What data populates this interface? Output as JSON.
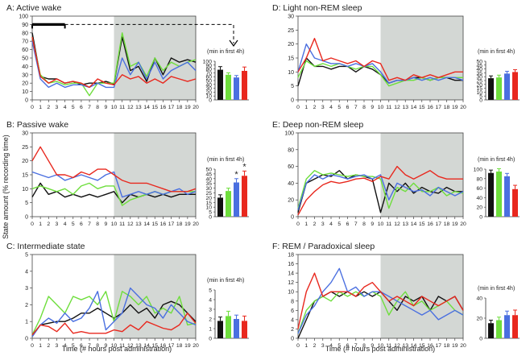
{
  "figure": {
    "ylabel": "State amount (% recording time)",
    "xlabel": "Time (# hours post administration)",
    "inset_label": "(min in first 4h)",
    "colors": {
      "black": "#111111",
      "green": "#6ede3c",
      "blue": "#4a6fe0",
      "red": "#e8281e",
      "shade": "#d3d7d4"
    }
  },
  "chart_data": [
    {
      "panel": "A",
      "title": "A: Active wake",
      "type": "line",
      "x": [
        0,
        1,
        2,
        3,
        4,
        5,
        6,
        7,
        8,
        9,
        10,
        11,
        12,
        13,
        14,
        15,
        16,
        17,
        18,
        19,
        20
      ],
      "ylim": [
        0,
        100
      ],
      "yticks": [
        0,
        10,
        20,
        30,
        40,
        50,
        60,
        70,
        80,
        90,
        100
      ],
      "xlim": [
        0,
        20
      ],
      "shaded_from": 10,
      "series": [
        {
          "color": "black",
          "values": [
            80,
            28,
            25,
            25,
            20,
            22,
            18,
            20,
            20,
            22,
            19,
            75,
            35,
            40,
            22,
            50,
            30,
            50,
            45,
            48,
            45
          ]
        },
        {
          "color": "green",
          "values": [
            75,
            30,
            20,
            22,
            18,
            20,
            20,
            5,
            20,
            20,
            20,
            80,
            40,
            45,
            28,
            50,
            35,
            45,
            40,
            45,
            48
          ]
        },
        {
          "color": "blue",
          "values": [
            70,
            25,
            15,
            20,
            15,
            18,
            18,
            15,
            20,
            15,
            15,
            50,
            30,
            45,
            25,
            45,
            25,
            35,
            40,
            45,
            35
          ]
        },
        {
          "color": "red",
          "values": [
            75,
            28,
            20,
            25,
            20,
            22,
            20,
            15,
            25,
            20,
            18,
            30,
            25,
            28,
            20,
            25,
            20,
            28,
            25,
            22,
            25
          ]
        }
      ],
      "inset": {
        "ylim": [
          0,
          100
        ],
        "yticks": [
          0,
          10,
          20,
          30,
          40,
          50,
          60,
          70,
          80,
          90,
          100
        ],
        "values": [
          78,
          65,
          58,
          75
        ],
        "errors": [
          8,
          5,
          5,
          10
        ],
        "stars": []
      }
    },
    {
      "panel": "B",
      "title": "B: Passive wake",
      "type": "line",
      "x": [
        0,
        1,
        2,
        3,
        4,
        5,
        6,
        7,
        8,
        9,
        10,
        11,
        12,
        13,
        14,
        15,
        16,
        17,
        18,
        19,
        20
      ],
      "ylim": [
        0,
        30
      ],
      "yticks": [
        0,
        5,
        10,
        15,
        20,
        25,
        30
      ],
      "xlim": [
        0,
        20
      ],
      "shaded_from": 10,
      "series": [
        {
          "color": "black",
          "values": [
            7,
            12,
            8,
            9,
            7,
            8,
            7,
            8,
            7,
            8,
            9,
            5,
            8,
            7,
            8,
            7,
            8,
            7,
            8,
            8,
            8
          ]
        },
        {
          "color": "green",
          "values": [
            10,
            11,
            10,
            9,
            10,
            8,
            11,
            12,
            10,
            11,
            11,
            4,
            6,
            7,
            8,
            9,
            8,
            9,
            9,
            9,
            9
          ]
        },
        {
          "color": "blue",
          "values": [
            16,
            15,
            14,
            15,
            13,
            14,
            15,
            14,
            13,
            15,
            16,
            7,
            8,
            9,
            8,
            9,
            8,
            9,
            10,
            8,
            9
          ]
        },
        {
          "color": "red",
          "values": [
            20,
            25,
            20,
            15,
            15,
            14,
            16,
            15,
            17,
            17,
            15,
            13,
            12,
            12,
            12,
            11,
            10,
            9,
            9,
            9,
            10
          ]
        }
      ],
      "inset": {
        "ylim": [
          0,
          50
        ],
        "yticks": [
          0,
          5,
          10,
          15,
          20,
          25,
          30,
          35,
          40,
          45,
          50
        ],
        "values": [
          20,
          27,
          36,
          43
        ],
        "errors": [
          3,
          3,
          4,
          5
        ],
        "stars": [
          2,
          3
        ]
      }
    },
    {
      "panel": "C",
      "title": "C: Intermediate state",
      "type": "line",
      "x": [
        0,
        1,
        2,
        3,
        4,
        5,
        6,
        7,
        8,
        9,
        10,
        11,
        12,
        13,
        14,
        15,
        16,
        17,
        18,
        19,
        20
      ],
      "ylim": [
        0,
        5
      ],
      "yticks": [
        0,
        1,
        2,
        3,
        4,
        5
      ],
      "xlim": [
        0,
        20
      ],
      "shaded_from": 10,
      "series": [
        {
          "color": "black",
          "values": [
            0.1,
            0.8,
            0.9,
            1.0,
            1.0,
            1.2,
            1.5,
            1.5,
            1.8,
            1.5,
            1.2,
            1.5,
            2.0,
            1.5,
            1.8,
            1.2,
            2.0,
            2.2,
            2.0,
            1.5,
            1.0
          ]
        },
        {
          "color": "green",
          "values": [
            0.2,
            1.2,
            2.5,
            2.0,
            1.5,
            2.5,
            2.3,
            2.5,
            2.0,
            2.8,
            1.0,
            2.8,
            2.5,
            2.0,
            2.5,
            1.5,
            1.8,
            1.5,
            2.5,
            0.8,
            0.9
          ]
        },
        {
          "color": "blue",
          "values": [
            0.1,
            0.8,
            1.2,
            0.9,
            1.5,
            1.0,
            1.2,
            1.8,
            2.8,
            0.5,
            1.0,
            1.5,
            3.0,
            2.5,
            2.0,
            1.8,
            1.2,
            2.0,
            1.5,
            1.0,
            0.8
          ]
        },
        {
          "color": "red",
          "values": [
            0.2,
            0.8,
            0.7,
            0.4,
            0.9,
            0.3,
            0.4,
            0.3,
            0.3,
            0.3,
            0.5,
            0.4,
            0.8,
            0.5,
            1.0,
            0.8,
            0.6,
            0.5,
            0.8,
            1.5,
            0.9
          ]
        }
      ],
      "inset": {
        "ylim": [
          0,
          5
        ],
        "yticks": [
          0,
          1,
          2,
          3,
          4,
          5
        ],
        "values": [
          1.8,
          2.3,
          2.0,
          1.8
        ],
        "errors": [
          0.4,
          0.5,
          0.4,
          0.5
        ],
        "stars": []
      }
    },
    {
      "panel": "D",
      "title": "D: Light non-REM sleep",
      "type": "line",
      "x": [
        0,
        1,
        2,
        3,
        4,
        5,
        6,
        7,
        8,
        9,
        10,
        11,
        12,
        13,
        14,
        15,
        16,
        17,
        18,
        19,
        20
      ],
      "ylim": [
        0,
        30
      ],
      "yticks": [
        0,
        5,
        10,
        15,
        20,
        25,
        30
      ],
      "xlim": [
        0,
        20
      ],
      "shaded_from": 10,
      "series": [
        {
          "color": "black",
          "values": [
            5,
            15,
            12,
            12,
            11,
            12,
            12,
            10,
            12,
            11,
            9,
            6,
            7,
            7,
            8,
            8,
            7,
            8,
            8,
            7,
            7
          ]
        },
        {
          "color": "green",
          "values": [
            8,
            14,
            12,
            13,
            12,
            13,
            12,
            11,
            12,
            12,
            9,
            5,
            6,
            7,
            7,
            8,
            7,
            8,
            8,
            8,
            8
          ]
        },
        {
          "color": "blue",
          "values": [
            10,
            20,
            15,
            14,
            13,
            13,
            12,
            13,
            12,
            13,
            10,
            6,
            7,
            7,
            8,
            7,
            8,
            7,
            8,
            8,
            7
          ]
        },
        {
          "color": "red",
          "values": [
            10,
            15,
            22,
            14,
            15,
            14,
            13,
            14,
            12,
            14,
            13,
            7,
            8,
            7,
            9,
            8,
            9,
            8,
            9,
            10,
            10
          ]
        }
      ],
      "inset": {
        "ylim": [
          0,
          50
        ],
        "yticks": [
          0,
          5,
          10,
          15,
          20,
          25,
          30,
          35,
          40,
          45,
          50
        ],
        "values": [
          28,
          29,
          34,
          36
        ],
        "errors": [
          3,
          3,
          3,
          3
        ],
        "stars": []
      }
    },
    {
      "panel": "E",
      "title": "E: Deep non-REM sleep",
      "type": "line",
      "x": [
        0,
        1,
        2,
        3,
        4,
        5,
        6,
        7,
        8,
        9,
        10,
        11,
        12,
        13,
        14,
        15,
        16,
        17,
        18,
        19,
        20
      ],
      "ylim": [
        0,
        100
      ],
      "yticks": [
        0,
        20,
        40,
        60,
        80,
        100
      ],
      "xlim": [
        0,
        20
      ],
      "shaded_from": 10,
      "series": [
        {
          "color": "black",
          "values": [
            5,
            40,
            45,
            50,
            48,
            55,
            45,
            50,
            48,
            45,
            5,
            40,
            30,
            40,
            28,
            35,
            30,
            28,
            35,
            30,
            30
          ]
        },
        {
          "color": "green",
          "values": [
            10,
            45,
            55,
            50,
            52,
            50,
            48,
            50,
            48,
            48,
            45,
            10,
            35,
            30,
            40,
            30,
            30,
            35,
            25,
            30,
            28
          ]
        },
        {
          "color": "blue",
          "values": [
            8,
            40,
            50,
            45,
            50,
            48,
            45,
            48,
            50,
            45,
            50,
            20,
            40,
            35,
            30,
            32,
            25,
            35,
            30,
            25,
            30
          ]
        },
        {
          "color": "red",
          "values": [
            2,
            20,
            30,
            38,
            42,
            40,
            42,
            45,
            46,
            42,
            48,
            45,
            60,
            50,
            45,
            50,
            55,
            48,
            45,
            45,
            45
          ]
        }
      ],
      "inset": {
        "ylim": [
          0,
          100
        ],
        "yticks": [
          0,
          20,
          40,
          60,
          80,
          100
        ],
        "values": [
          92,
          95,
          85,
          58
        ],
        "errors": [
          6,
          6,
          6,
          8
        ],
        "stars": []
      }
    },
    {
      "panel": "F",
      "title": "F: REM / Paradoxical sleep",
      "type": "line",
      "x": [
        0,
        1,
        2,
        3,
        4,
        5,
        6,
        7,
        8,
        9,
        10,
        11,
        12,
        13,
        14,
        15,
        16,
        17,
        18,
        19,
        20
      ],
      "ylim": [
        0,
        18
      ],
      "yticks": [
        0,
        2,
        4,
        6,
        8,
        10,
        12,
        14,
        16,
        18
      ],
      "xlim": [
        0,
        20
      ],
      "shaded_from": 10,
      "series": [
        {
          "color": "black",
          "values": [
            0,
            4,
            8,
            9,
            10,
            9,
            10,
            9,
            10,
            9,
            10,
            8,
            6,
            9,
            8,
            9,
            6,
            9,
            8,
            9,
            6
          ]
        },
        {
          "color": "green",
          "values": [
            1,
            6,
            8,
            9,
            8,
            10,
            9,
            10,
            9,
            10,
            9,
            5,
            8,
            10,
            7,
            8,
            6,
            7,
            8,
            6,
            5
          ]
        },
        {
          "color": "blue",
          "values": [
            1,
            5,
            7,
            10,
            12,
            15,
            10,
            11,
            9,
            10,
            10,
            9,
            8,
            7,
            6,
            5,
            6,
            4,
            5,
            6,
            5
          ]
        },
        {
          "color": "red",
          "values": [
            2,
            10,
            14,
            9,
            10,
            10,
            10,
            9,
            11,
            12,
            10,
            8,
            9,
            8,
            7,
            9,
            8,
            7,
            8,
            9,
            6
          ]
        }
      ],
      "inset": {
        "ylim": [
          0,
          40
        ],
        "yticks": [
          0,
          20,
          40
        ],
        "values": [
          15,
          18,
          23,
          23
        ],
        "errors": [
          3,
          3,
          4,
          5
        ],
        "stars": []
      }
    }
  ]
}
